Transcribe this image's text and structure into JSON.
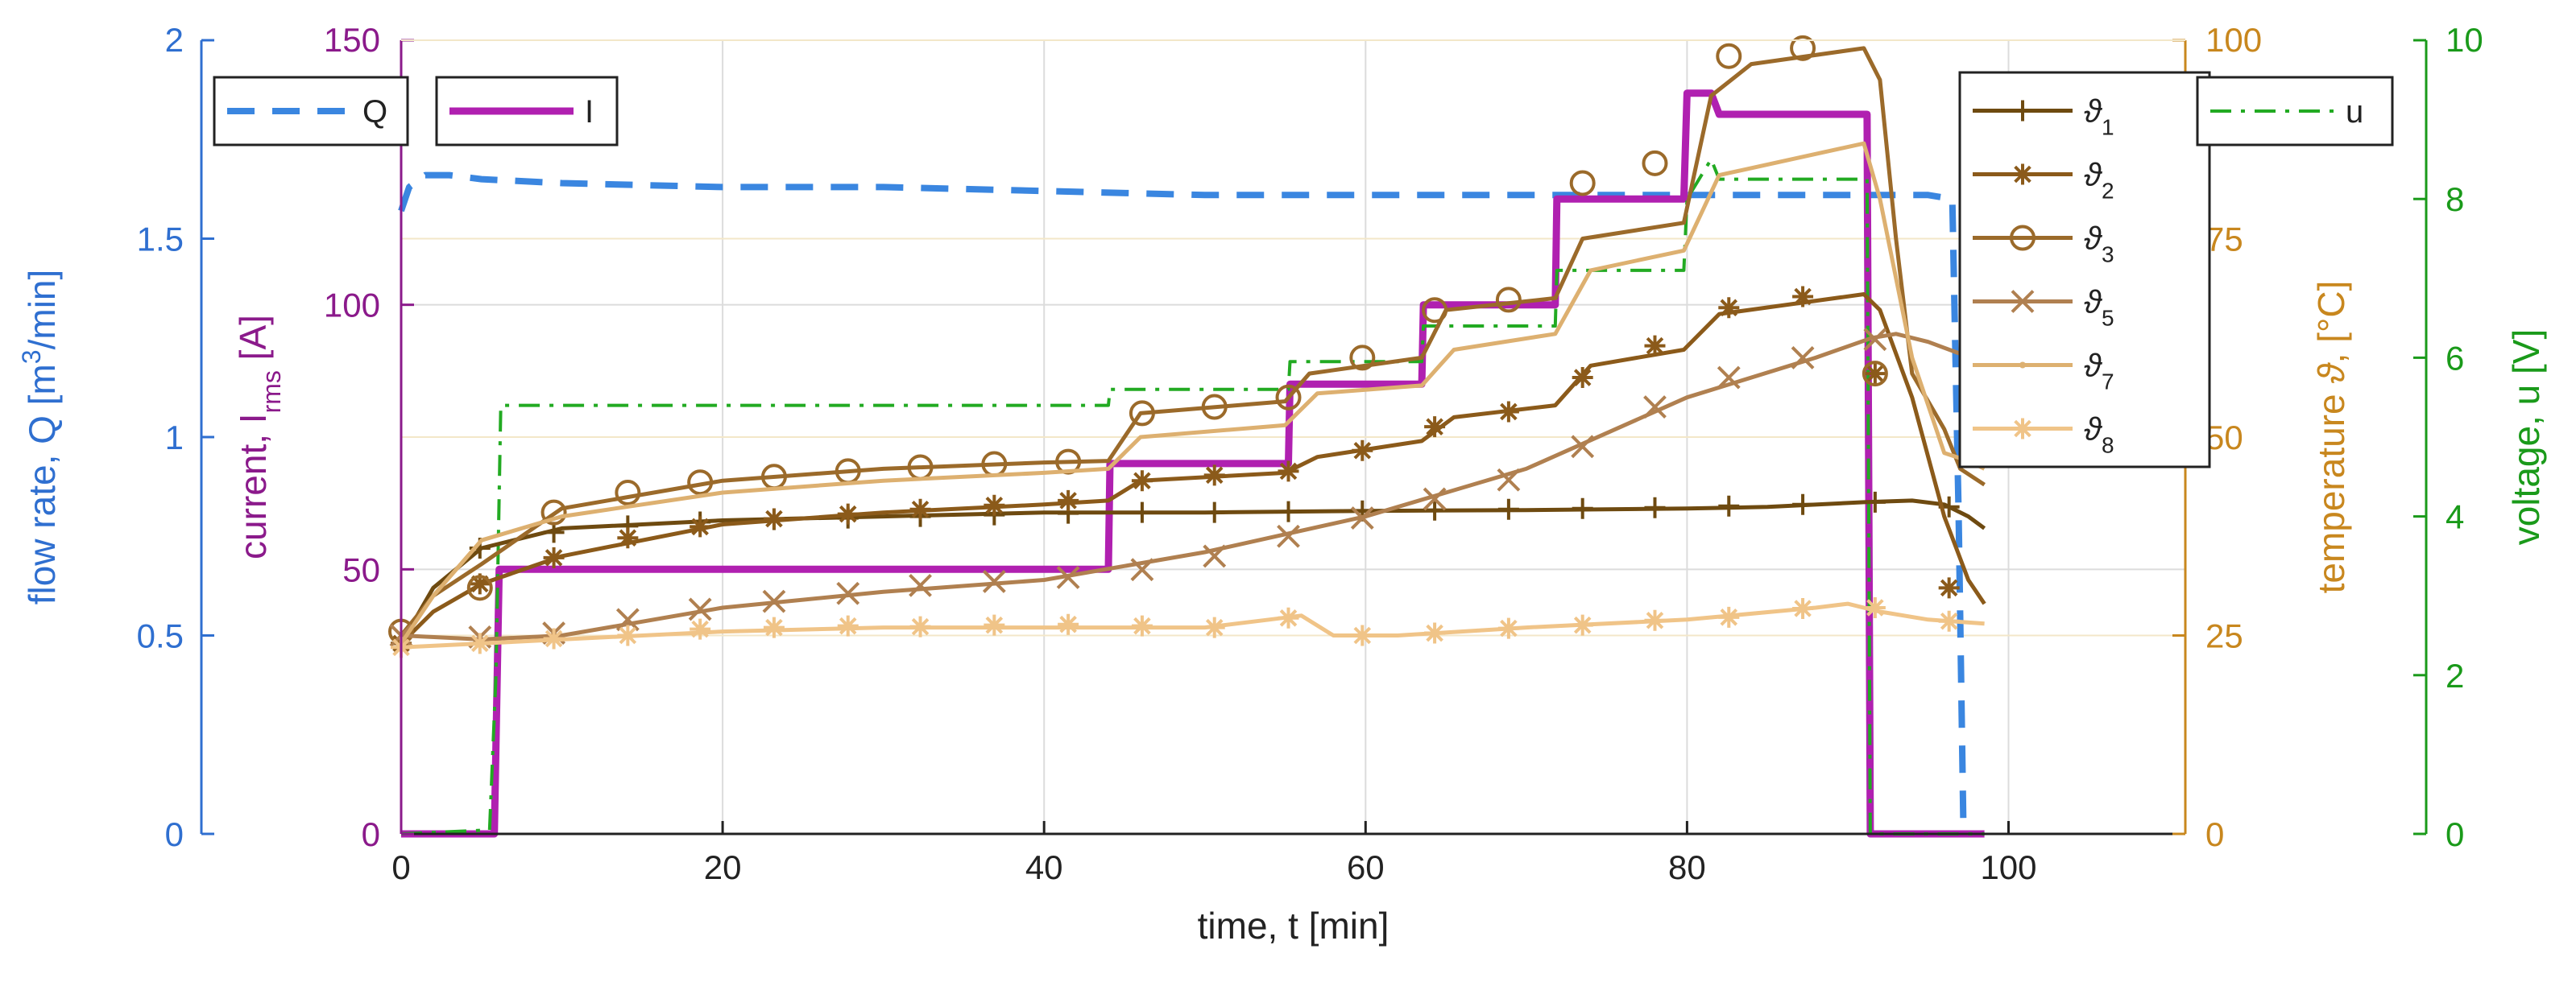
{
  "chart_data": {
    "type": "line",
    "x_axis": {
      "label": "time, t [min]",
      "lim": [
        0,
        111
      ],
      "ticks": [
        0,
        20,
        40,
        60,
        80,
        100
      ],
      "tick_labels": [
        "0",
        "20",
        "40",
        "60",
        "80",
        "100"
      ]
    },
    "y_axes": [
      {
        "id": "Q",
        "side": "left-outer",
        "color": "#2f6fd0",
        "label_parts": [
          "flow rate, Q [m",
          "3",
          "/min]"
        ],
        "lim": [
          0,
          2
        ],
        "ticks": [
          0,
          0.5,
          1,
          1.5,
          2
        ],
        "tick_labels": [
          "0",
          "0.5",
          "1",
          "1.5",
          "2"
        ]
      },
      {
        "id": "I",
        "side": "left-inner",
        "color": "#8b1a8b",
        "label_parts": [
          "current, I",
          "rms",
          " [A]"
        ],
        "lim": [
          0,
          150
        ],
        "ticks": [
          0,
          50,
          100,
          150
        ],
        "tick_labels": [
          "0",
          "50",
          "100",
          "150"
        ]
      },
      {
        "id": "T",
        "side": "right-inner",
        "color": "#c8871e",
        "label_parts": [
          "temperature ",
          "ϑ",
          ", [°C]"
        ],
        "lim": [
          0,
          100
        ],
        "ticks": [
          0,
          25,
          50,
          75,
          100
        ],
        "tick_labels": [
          "0",
          "25",
          "50",
          "75",
          "100"
        ]
      },
      {
        "id": "U",
        "side": "right-outer",
        "color": "#1a9a1a",
        "label_parts": [
          "voltage, u [V]"
        ],
        "lim": [
          0,
          10
        ],
        "ticks": [
          0,
          2,
          4,
          6,
          8,
          10
        ],
        "tick_labels": [
          "0",
          "2",
          "4",
          "6",
          "8",
          "10"
        ]
      }
    ],
    "series": [
      {
        "name": "Q",
        "axis": "Q",
        "color": "#3a86e0",
        "style": "dash",
        "marker": "none",
        "x": [
          0,
          0.5,
          1.5,
          3,
          5,
          10,
          20,
          30,
          40,
          50,
          60,
          70,
          80,
          90,
          95,
          96.5,
          96.9,
          97.2
        ],
        "y": [
          1.57,
          1.63,
          1.66,
          1.66,
          1.65,
          1.64,
          1.63,
          1.63,
          1.62,
          1.61,
          1.61,
          1.61,
          1.61,
          1.61,
          1.61,
          1.6,
          0.8,
          0
        ]
      },
      {
        "name": "I",
        "axis": "I",
        "color": "#b020b0",
        "style": "solid-thick",
        "marker": "none",
        "x": [
          0,
          5.8,
          6.1,
          44,
          44.1,
          55.2,
          55.3,
          63.5,
          63.6,
          71.8,
          71.9,
          79.8,
          80,
          81.5,
          82,
          91.2,
          91.4,
          98.5
        ],
        "y": [
          0,
          0,
          50,
          50,
          70,
          70,
          85,
          85,
          100,
          100,
          120,
          120,
          140,
          140,
          136,
          136,
          0,
          0
        ]
      },
      {
        "name": "u",
        "axis": "U",
        "color": "#22aa22",
        "style": "dashdot",
        "marker": "none",
        "x": [
          0,
          5.5,
          5.9,
          6.2,
          44,
          44.1,
          55.2,
          55.3,
          63.5,
          63.6,
          71.8,
          71.9,
          79.8,
          80,
          81.5,
          82,
          91.2,
          91.4,
          98.5
        ],
        "y": [
          0,
          0.05,
          2,
          5.4,
          5.4,
          5.6,
          5.6,
          5.95,
          5.95,
          6.4,
          6.4,
          7.1,
          7.1,
          8.0,
          8.5,
          8.25,
          8.25,
          0,
          0
        ]
      },
      {
        "name": "ϑ1",
        "axis": "T",
        "color": "#6e4a10",
        "style": "solid",
        "marker": "plus",
        "x": [
          0,
          2,
          5,
          10,
          20,
          30,
          40,
          50,
          60,
          70,
          80,
          85,
          91,
          94,
          96,
          97.5,
          98.5
        ],
        "y": [
          24,
          31,
          36,
          38.5,
          39.5,
          40,
          40.5,
          40.5,
          40.7,
          40.8,
          41,
          41.2,
          41.8,
          42,
          41.5,
          40,
          38.5
        ],
        "markers_x": [
          0,
          4.9,
          9.5,
          14.1,
          18.6,
          23.2,
          27.8,
          32.3,
          36.9,
          41.5,
          46.1,
          50.6,
          55.2,
          59.8,
          64.3,
          68.9,
          73.5,
          78,
          82.6,
          87.2,
          91.7,
          96.3
        ],
        "markers_y": [
          24,
          36,
          38,
          38.8,
          39.3,
          39.6,
          39.8,
          40,
          40.2,
          40.4,
          40.5,
          40.5,
          40.6,
          40.7,
          40.8,
          40.9,
          41,
          41.1,
          41.3,
          41.5,
          41.8,
          41.2
        ]
      },
      {
        "name": "ϑ2",
        "axis": "T",
        "color": "#8b5a1a",
        "style": "solid",
        "marker": "star",
        "x": [
          0,
          2,
          5,
          10,
          20,
          30,
          40,
          44,
          46,
          55,
          57,
          63.5,
          65.5,
          71.8,
          74,
          79.8,
          82,
          91,
          92,
          94,
          96,
          97.5,
          98.5
        ],
        "y": [
          24,
          28,
          31.5,
          35,
          39,
          40.5,
          41.5,
          42,
          44.5,
          45.5,
          47.5,
          49.5,
          52.5,
          54,
          59,
          61,
          65.5,
          68,
          66,
          55,
          40,
          32,
          29
        ],
        "markers_x": [
          0,
          4.9,
          9.5,
          14.1,
          18.6,
          23.2,
          27.8,
          32.3,
          36.9,
          41.5,
          46.1,
          50.6,
          55.2,
          59.8,
          64.3,
          68.9,
          73.5,
          78,
          82.6,
          87.2,
          91.7,
          96.3
        ],
        "markers_y": [
          24,
          31.5,
          34.8,
          37.3,
          38.7,
          39.7,
          40.3,
          40.9,
          41.4,
          42,
          44.5,
          45.2,
          45.7,
          48.3,
          51.3,
          53.2,
          57.5,
          61.5,
          66.3,
          67.7,
          58,
          31
        ]
      },
      {
        "name": "ϑ3",
        "axis": "T",
        "color": "#9b6a2a",
        "style": "solid",
        "marker": "circle",
        "x": [
          0,
          2,
          5,
          10,
          20,
          30,
          40,
          44,
          46,
          55,
          56.5,
          63.5,
          65,
          71.8,
          73.5,
          79.8,
          81.5,
          84,
          91,
          92,
          93,
          94,
          96,
          97,
          98.5
        ],
        "y": [
          25,
          30,
          34,
          41,
          44.5,
          46,
          46.8,
          47,
          53,
          54.5,
          58,
          60,
          66,
          67.5,
          75,
          77,
          93,
          97,
          99,
          95,
          75,
          58,
          51,
          46,
          44
        ],
        "markers_x": [
          0,
          4.9,
          9.5,
          14.1,
          18.6,
          23.2,
          27.8,
          32.3,
          36.9,
          41.5,
          46.1,
          50.6,
          55.2,
          59.8,
          64.3,
          68.9,
          73.5,
          78,
          82.6,
          87.2,
          91.7
        ],
        "markers_y": [
          25.5,
          31,
          40.5,
          43,
          44.3,
          45,
          45.7,
          46.2,
          46.6,
          46.9,
          53,
          53.8,
          55,
          60,
          66,
          67.3,
          82,
          84.5,
          98,
          99,
          58
        ]
      },
      {
        "name": "ϑ5",
        "axis": "T",
        "color": "#b08050",
        "style": "solid",
        "marker": "cross",
        "x": [
          0,
          5,
          10,
          20,
          30,
          40,
          50,
          60,
          70,
          80,
          88,
          91.5,
          93,
          95,
          97,
          98.5
        ],
        "y": [
          25,
          24.5,
          25,
          28.5,
          30.5,
          32,
          35.5,
          40,
          46,
          55,
          60,
          62.5,
          63,
          62,
          60.5,
          59
        ],
        "markers_x": [
          0,
          4.9,
          9.5,
          14.1,
          18.6,
          23.2,
          27.8,
          32.3,
          36.9,
          41.5,
          46.1,
          50.6,
          55.2,
          59.8,
          64.3,
          68.9,
          73.5,
          78,
          82.6,
          87.2,
          91.7
        ],
        "markers_y": [
          25,
          24.8,
          25.3,
          27,
          28.3,
          29.3,
          30.3,
          31.3,
          31.8,
          32.3,
          33.3,
          35,
          37.5,
          39.8,
          42.2,
          44.6,
          48.8,
          53.8,
          57.5,
          60,
          62.3
        ]
      },
      {
        "name": "ϑ7",
        "axis": "T",
        "color": "#ddb070",
        "style": "solid",
        "marker": "dot",
        "x": [
          0,
          2,
          5,
          10,
          20,
          30,
          40,
          44,
          46,
          55,
          57,
          63.5,
          65.5,
          71.8,
          74,
          79.8,
          82,
          91,
          92,
          94,
          96,
          97.5,
          98.5
        ],
        "y": [
          24,
          30,
          37,
          40,
          43,
          44.5,
          45.5,
          46,
          50,
          51.5,
          55.5,
          56.5,
          61,
          63,
          71,
          73.5,
          83,
          87,
          80,
          60,
          48,
          47,
          46
        ],
        "markers_x": [],
        "markers_y": []
      },
      {
        "name": "ϑ8",
        "axis": "T",
        "color": "#f0c488",
        "style": "solid",
        "marker": "asterisk",
        "x": [
          0,
          5,
          10,
          20,
          30,
          40,
          50,
          54,
          56,
          58,
          62,
          70,
          80,
          88,
          90,
          92,
          95,
          98.5
        ],
        "y": [
          23.5,
          24,
          24.5,
          25.5,
          26,
          26,
          26,
          27,
          27.5,
          25,
          25,
          26,
          27,
          28.5,
          29,
          28,
          27,
          26.5
        ],
        "markers_x": [
          0,
          4.9,
          9.5,
          14.1,
          18.6,
          23.2,
          27.8,
          32.3,
          36.9,
          41.5,
          46.1,
          50.6,
          55.2,
          59.8,
          64.3,
          68.9,
          73.5,
          78,
          82.6,
          87.2,
          91.7,
          96.3
        ],
        "markers_y": [
          23.5,
          24,
          24.6,
          25,
          25.8,
          26,
          26.2,
          26.1,
          26.3,
          26.4,
          26.2,
          26,
          27.2,
          25,
          25.3,
          25.9,
          26.3,
          26.9,
          27.3,
          28.4,
          28.5,
          26.8
        ]
      }
    ],
    "legends": [
      {
        "entries": [
          "Q"
        ],
        "position": "top-left"
      },
      {
        "entries": [
          "I"
        ],
        "position": "top-left"
      },
      {
        "entries": [
          "ϑ1",
          "ϑ2",
          "ϑ3",
          "ϑ5",
          "ϑ7",
          "ϑ8"
        ],
        "position": "top-right",
        "labels": [
          [
            "ϑ",
            "1"
          ],
          [
            "ϑ",
            "2"
          ],
          [
            "ϑ",
            "3"
          ],
          [
            "ϑ",
            "5"
          ],
          [
            "ϑ",
            "7"
          ],
          [
            "ϑ",
            "8"
          ]
        ]
      },
      {
        "entries": [
          "u"
        ],
        "position": "top-right"
      }
    ],
    "grid": true,
    "colors": {
      "grid": "#dcdcdc",
      "grid_upper": "#f3e7c9",
      "axis": "#222222"
    }
  }
}
